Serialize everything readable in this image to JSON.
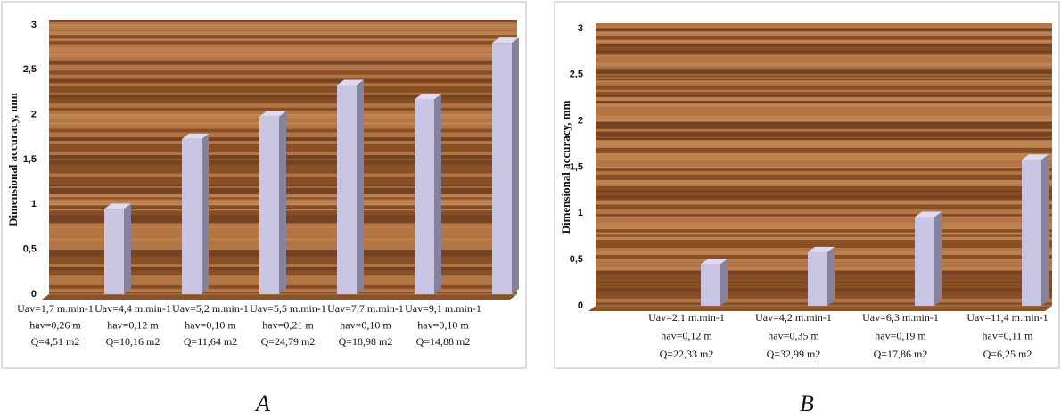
{
  "chart_data": [
    {
      "type": "bar3d",
      "caption": "A",
      "y_label": "Dimensional accuracy, mm",
      "categories": [
        [
          "Uav=1,7 m.min-1",
          "hav=0,26 m",
          "Q=4,51 m2"
        ],
        [
          "Uav=4,4 m.min-1",
          "hav=0,12 m",
          "Q=10,16 m2"
        ],
        [
          "Uav=5,2 m.min-1",
          "hav=0,10 m",
          "Q=11,64 m2"
        ],
        [
          "Uav=5,5 m.min-1",
          "hav=0,21 m",
          "Q=24,79 m2"
        ],
        [
          "Uav=7,7 m.min-1",
          "hav=0,10 m",
          "Q=18,98 m2"
        ],
        [
          "Uav=9,1 m.min-1",
          "hav=0,10 m",
          "Q=14,88 m2"
        ]
      ],
      "values": [
        0.95,
        1.73,
        1.98,
        2.33,
        2.17,
        2.8
      ],
      "color": "#c9c5e2",
      "ylim": [
        0,
        3
      ],
      "yticks": [
        0,
        {
          "value": 0.5,
          "label": "0,5"
        },
        1,
        {
          "value": 1.5,
          "label": "1,5"
        },
        2,
        {
          "value": 2.5,
          "label": "2,5"
        },
        3
      ]
    },
    {
      "type": "bar3d",
      "caption": "B",
      "y_label": "Dimensional accuracy, mm",
      "categories": [
        [
          "Uav=2,1 m.min-1",
          "hav=0,12 m",
          "Q=22,33 m2"
        ],
        [
          "Uav=4,2 m.min-1",
          "hav=0,35 m",
          "Q=32,99 m2"
        ],
        [
          "Uav=6,3 m.min-1",
          "hav=0,19 m",
          "Q=17,86 m2"
        ],
        [
          "Uav=11,4 m.min-1",
          "hav=0,11 m",
          "Q=6,25 m2"
        ]
      ],
      "values": [
        0.45,
        0.58,
        0.96,
        1.58
      ],
      "color": "#c9c5e2",
      "ylim": [
        0,
        3
      ],
      "yticks": [
        0,
        {
          "value": 0.5,
          "label": "0,5"
        },
        1,
        {
          "value": 1.5,
          "label": "1,5"
        },
        2,
        {
          "value": 2.5,
          "label": "2,5"
        },
        3
      ]
    }
  ]
}
